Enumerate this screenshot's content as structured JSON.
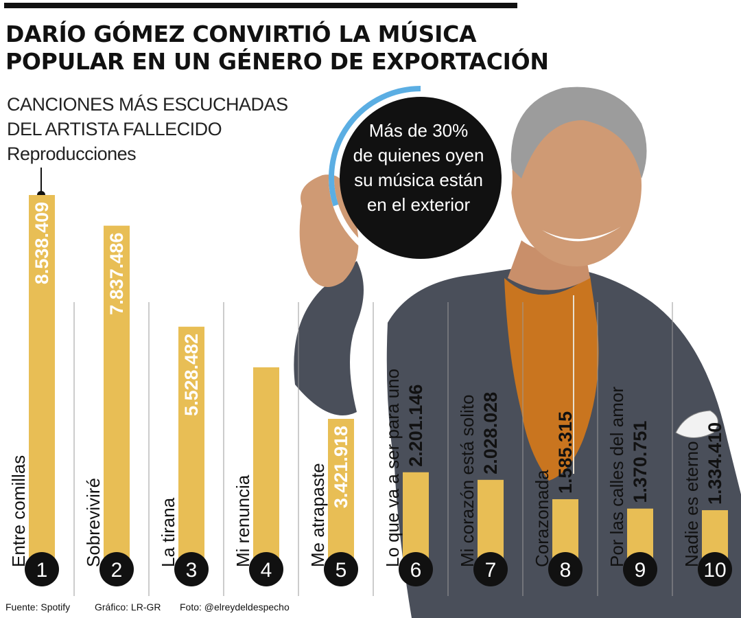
{
  "header": {
    "title_line_1": "DARÍO GÓMEZ CONVIRTIÓ LA MÚSICA",
    "title_line_2": "POPULAR EN UN GÉNERO DE EXPORTACIÓN",
    "subtitle_line_1": "CANCIONES MÁS ESCUCHADAS",
    "subtitle_line_2": "DEL ARTISTA FALLECIDO",
    "y_unit": "Reproducciones"
  },
  "callout": {
    "lines": [
      "Más de 30%",
      "de quienes oyen",
      "su música están",
      "en el exterior"
    ],
    "share_fraction": 0.3
  },
  "footer": {
    "source": "Fuente: Spotify",
    "graphic_credit": "Gráfico: LR-GR",
    "photo_credit": "Foto: @elreydeldespecho"
  },
  "colors": {
    "bar": "#E8BE55",
    "accent_ring": "#5BAEE3",
    "badge": "#111111",
    "text": "#111111"
  },
  "chart_data": {
    "type": "bar",
    "orientation": "vertical",
    "title": "CANCIONES MÁS ESCUCHADAS DEL ARTISTA FALLECIDO",
    "ylabel": "Reproducciones",
    "ylim": [
      0,
      8538409
    ],
    "grid": false,
    "ranks": [
      "1",
      "2",
      "3",
      "4",
      "5",
      "6",
      "7",
      "8",
      "9",
      "10"
    ],
    "categories": [
      "Entre comillas",
      "Sobreviviré",
      "La tirana",
      "Mi renuncia",
      "Me atrapaste",
      "Lo que va a ser para uno",
      "Mi corazón está solito",
      "Corazonada",
      "Por las calles del amor",
      "Nadie es eterno"
    ],
    "values": [
      8538409,
      7837486,
      5528482,
      4600000,
      3421918,
      2201146,
      2028028,
      1585315,
      1370751,
      1334410
    ],
    "value_labels": [
      "8.538.409",
      "7.837.486",
      "5.528.482",
      "",
      "3.421.918",
      "2.201.146",
      "2.028.028",
      "1.585.315",
      "1.370.751",
      "1.334.410"
    ]
  }
}
